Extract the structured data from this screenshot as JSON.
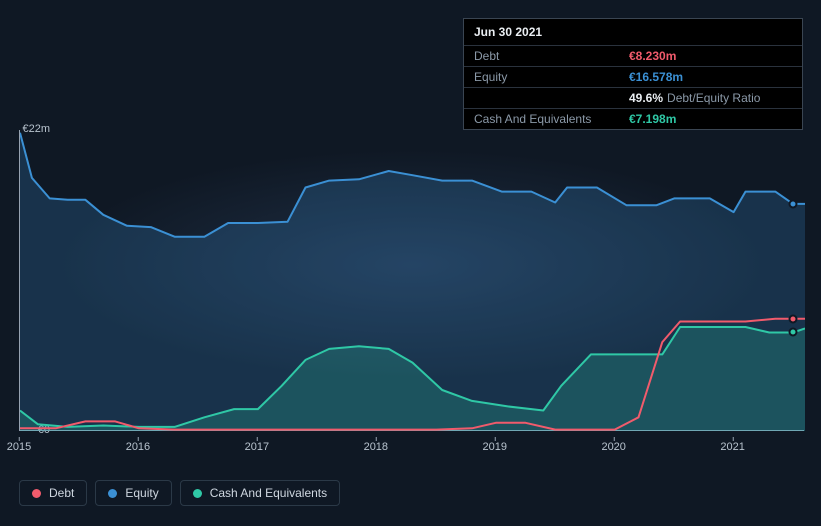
{
  "tooltip": {
    "date": "Jun 30 2021",
    "rows": [
      {
        "label": "Debt",
        "value": "€8.230m",
        "color": "#f15b6c",
        "extra": ""
      },
      {
        "label": "Equity",
        "value": "€16.578m",
        "color": "#3b90d4",
        "extra": ""
      },
      {
        "label": "",
        "value": "49.6%",
        "color": "#eaeef2",
        "extra": "Debt/Equity Ratio"
      },
      {
        "label": "Cash And Equivalents",
        "value": "€7.198m",
        "color": "#2fc8a6",
        "extra": ""
      }
    ]
  },
  "chart": {
    "type": "line-area",
    "background_color": "#0f1824",
    "axis_color": "#96a2b1",
    "tick_font_size": 11,
    "tick_color": "#b8c3ce",
    "x": {
      "min": 2015,
      "max": 2021.6,
      "ticks": [
        2015,
        2016,
        2017,
        2018,
        2019,
        2020,
        2021
      ],
      "tick_labels": [
        "2015",
        "2016",
        "2017",
        "2018",
        "2019",
        "2020",
        "2021"
      ]
    },
    "y": {
      "min": 0,
      "max": 22,
      "ticks": [
        0,
        22
      ],
      "tick_labels": [
        "€0",
        "€22m"
      ]
    },
    "marker_x": 2021.5,
    "series": [
      {
        "name": "Equity",
        "color": "#3b90d4",
        "fill": "rgba(59,144,212,0.22)",
        "line_width": 2,
        "points": [
          [
            2015.0,
            21.8
          ],
          [
            2015.1,
            18.5
          ],
          [
            2015.25,
            17.0
          ],
          [
            2015.4,
            16.9
          ],
          [
            2015.55,
            16.9
          ],
          [
            2015.7,
            15.8
          ],
          [
            2015.9,
            15.0
          ],
          [
            2016.1,
            14.9
          ],
          [
            2016.3,
            14.2
          ],
          [
            2016.55,
            14.2
          ],
          [
            2016.75,
            15.2
          ],
          [
            2017.0,
            15.2
          ],
          [
            2017.25,
            15.3
          ],
          [
            2017.4,
            17.8
          ],
          [
            2017.6,
            18.3
          ],
          [
            2017.85,
            18.4
          ],
          [
            2018.1,
            19.0
          ],
          [
            2018.3,
            18.7
          ],
          [
            2018.55,
            18.3
          ],
          [
            2018.8,
            18.3
          ],
          [
            2019.05,
            17.5
          ],
          [
            2019.3,
            17.5
          ],
          [
            2019.5,
            16.7
          ],
          [
            2019.6,
            17.8
          ],
          [
            2019.85,
            17.8
          ],
          [
            2020.1,
            16.5
          ],
          [
            2020.35,
            16.5
          ],
          [
            2020.5,
            17.0
          ],
          [
            2020.8,
            17.0
          ],
          [
            2021.0,
            16.0
          ],
          [
            2021.1,
            17.5
          ],
          [
            2021.35,
            17.5
          ],
          [
            2021.5,
            16.6
          ],
          [
            2021.6,
            16.6
          ]
        ]
      },
      {
        "name": "Cash And Equivalents",
        "color": "#2fc8a6",
        "fill": "rgba(47,200,166,0.22)",
        "line_width": 2,
        "points": [
          [
            2015.0,
            1.5
          ],
          [
            2015.15,
            0.5
          ],
          [
            2015.4,
            0.3
          ],
          [
            2015.7,
            0.4
          ],
          [
            2016.0,
            0.3
          ],
          [
            2016.3,
            0.3
          ],
          [
            2016.55,
            1.0
          ],
          [
            2016.8,
            1.6
          ],
          [
            2017.0,
            1.6
          ],
          [
            2017.2,
            3.3
          ],
          [
            2017.4,
            5.2
          ],
          [
            2017.6,
            6.0
          ],
          [
            2017.85,
            6.2
          ],
          [
            2018.1,
            6.0
          ],
          [
            2018.3,
            5.0
          ],
          [
            2018.55,
            3.0
          ],
          [
            2018.8,
            2.2
          ],
          [
            2019.1,
            1.8
          ],
          [
            2019.4,
            1.5
          ],
          [
            2019.55,
            3.3
          ],
          [
            2019.8,
            5.6
          ],
          [
            2020.0,
            5.6
          ],
          [
            2020.15,
            5.6
          ],
          [
            2020.4,
            5.6
          ],
          [
            2020.55,
            7.6
          ],
          [
            2020.85,
            7.6
          ],
          [
            2021.1,
            7.6
          ],
          [
            2021.3,
            7.2
          ],
          [
            2021.5,
            7.2
          ],
          [
            2021.6,
            7.5
          ]
        ]
      },
      {
        "name": "Debt",
        "color": "#f15b6c",
        "fill": "none",
        "line_width": 2,
        "points": [
          [
            2015.0,
            0.2
          ],
          [
            2015.3,
            0.2
          ],
          [
            2015.55,
            0.7
          ],
          [
            2015.8,
            0.7
          ],
          [
            2016.0,
            0.2
          ],
          [
            2016.3,
            0.1
          ],
          [
            2016.6,
            0.1
          ],
          [
            2016.9,
            0.1
          ],
          [
            2017.3,
            0.1
          ],
          [
            2017.7,
            0.1
          ],
          [
            2018.1,
            0.1
          ],
          [
            2018.5,
            0.1
          ],
          [
            2018.8,
            0.2
          ],
          [
            2019.0,
            0.6
          ],
          [
            2019.25,
            0.6
          ],
          [
            2019.5,
            0.1
          ],
          [
            2019.8,
            0.1
          ],
          [
            2020.0,
            0.1
          ],
          [
            2020.2,
            1.0
          ],
          [
            2020.4,
            6.5
          ],
          [
            2020.55,
            8.0
          ],
          [
            2020.85,
            8.0
          ],
          [
            2021.1,
            8.0
          ],
          [
            2021.35,
            8.2
          ],
          [
            2021.5,
            8.2
          ],
          [
            2021.6,
            8.2
          ]
        ]
      }
    ],
    "legend": [
      {
        "label": "Debt",
        "color": "#f15b6c"
      },
      {
        "label": "Equity",
        "color": "#3b90d4"
      },
      {
        "label": "Cash And Equivalents",
        "color": "#2fc8a6"
      }
    ]
  }
}
